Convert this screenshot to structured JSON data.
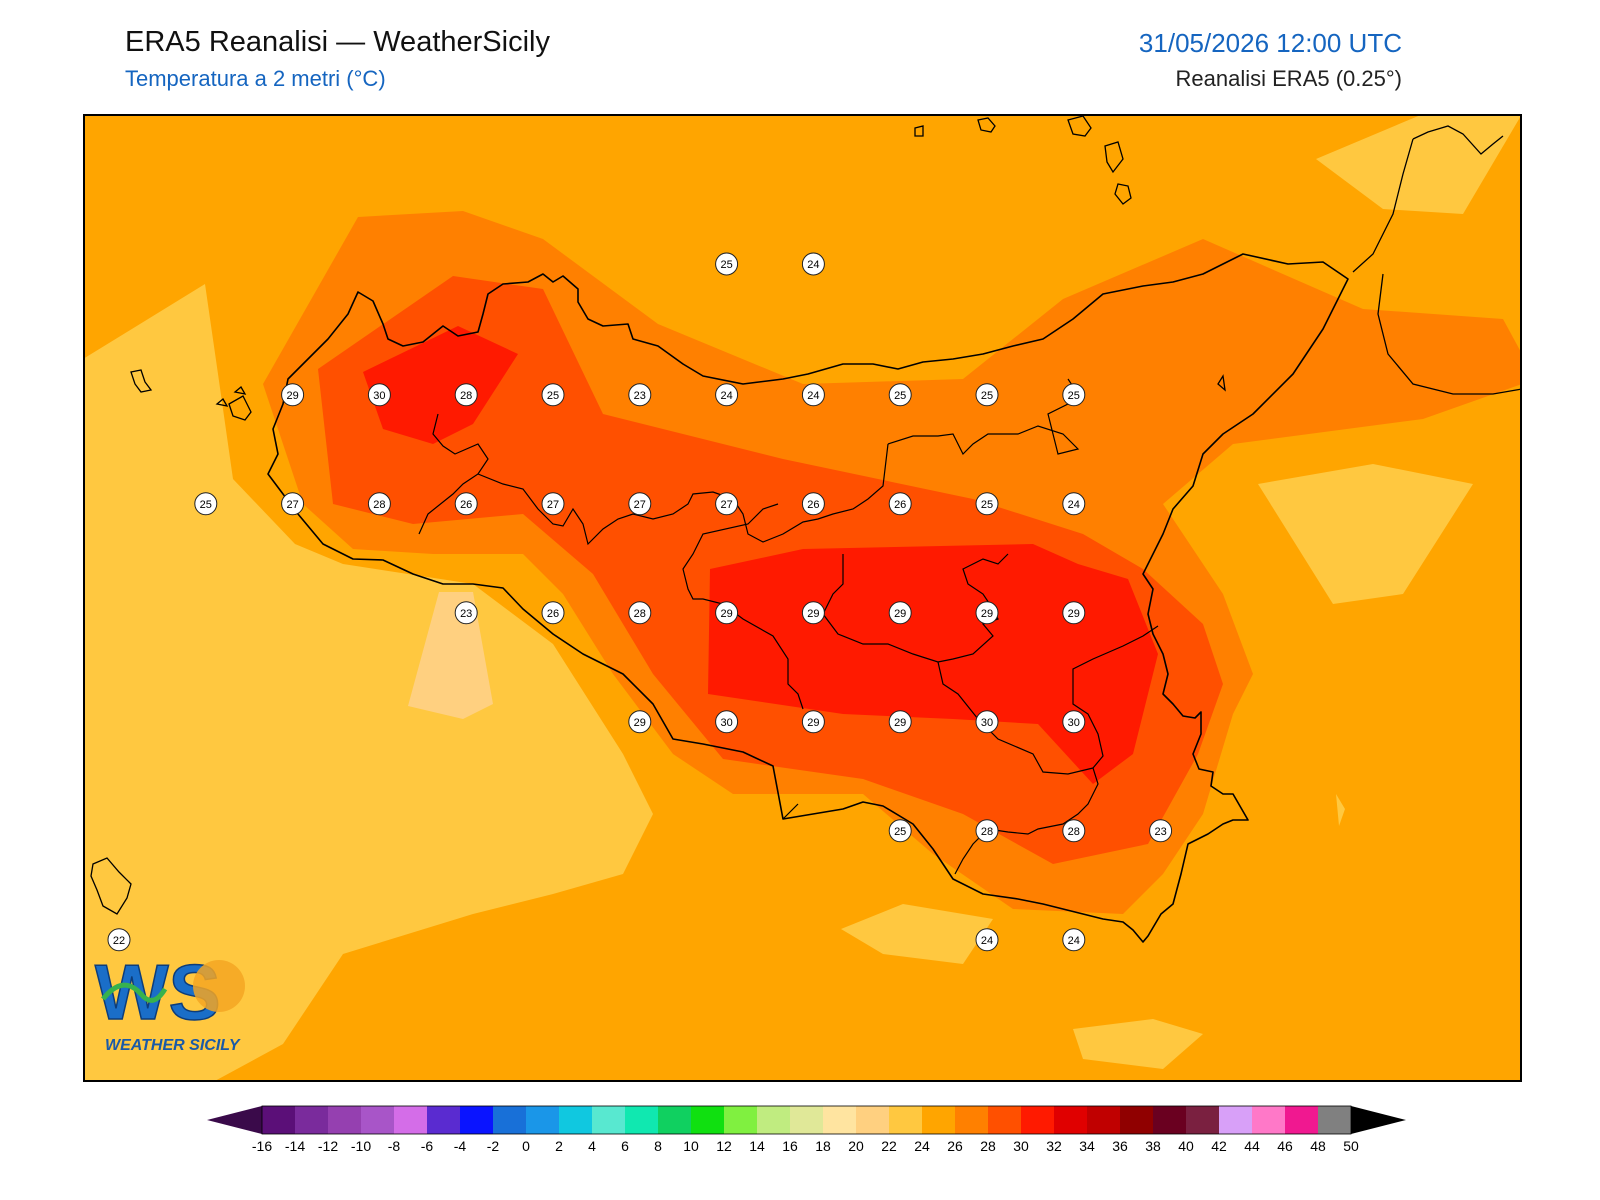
{
  "header": {
    "title": "ERA5 Reanalisi — WeatherSicily",
    "subtitle": "Temperatura a 2 metri (°C)",
    "datetime": "31/05/2026 12:00 UTC",
    "source": "Reanalisi ERA5 (0.25°)"
  },
  "logo": {
    "text": "WS",
    "caption": "WEATHER SICILY"
  },
  "map": {
    "background_color": "#ffa500",
    "temperature_labels": [
      {
        "value": "25",
        "lon": 15.0,
        "lat": 38.6
      },
      {
        "value": "24",
        "lon": 15.5,
        "lat": 38.6
      },
      {
        "value": "29",
        "lon": 12.5,
        "lat": 38.0
      },
      {
        "value": "30",
        "lon": 13.0,
        "lat": 38.0
      },
      {
        "value": "28",
        "lon": 13.5,
        "lat": 38.0
      },
      {
        "value": "25",
        "lon": 14.0,
        "lat": 38.0
      },
      {
        "value": "23",
        "lon": 14.5,
        "lat": 38.0
      },
      {
        "value": "24",
        "lon": 15.0,
        "lat": 38.0
      },
      {
        "value": "24",
        "lon": 15.5,
        "lat": 38.0
      },
      {
        "value": "25",
        "lon": 16.0,
        "lat": 38.0
      },
      {
        "value": "25",
        "lon": 16.5,
        "lat": 38.0
      },
      {
        "value": "25",
        "lon": 17.0,
        "lat": 38.0
      },
      {
        "value": "25",
        "lon": 12.0,
        "lat": 37.5
      },
      {
        "value": "27",
        "lon": 12.5,
        "lat": 37.5
      },
      {
        "value": "28",
        "lon": 13.0,
        "lat": 37.5
      },
      {
        "value": "26",
        "lon": 13.5,
        "lat": 37.5
      },
      {
        "value": "27",
        "lon": 14.0,
        "lat": 37.5
      },
      {
        "value": "27",
        "lon": 14.5,
        "lat": 37.5
      },
      {
        "value": "27",
        "lon": 15.0,
        "lat": 37.5
      },
      {
        "value": "26",
        "lon": 15.5,
        "lat": 37.5
      },
      {
        "value": "26",
        "lon": 16.0,
        "lat": 37.5
      },
      {
        "value": "25",
        "lon": 16.5,
        "lat": 37.5
      },
      {
        "value": "24",
        "lon": 17.0,
        "lat": 37.5
      },
      {
        "value": "23",
        "lon": 13.5,
        "lat": 37.0
      },
      {
        "value": "26",
        "lon": 14.0,
        "lat": 37.0
      },
      {
        "value": "28",
        "lon": 14.5,
        "lat": 37.0
      },
      {
        "value": "29",
        "lon": 15.0,
        "lat": 37.0
      },
      {
        "value": "29",
        "lon": 15.5,
        "lat": 37.0
      },
      {
        "value": "29",
        "lon": 16.0,
        "lat": 37.0
      },
      {
        "value": "29",
        "lon": 16.5,
        "lat": 37.0
      },
      {
        "value": "29",
        "lon": 17.0,
        "lat": 37.0
      },
      {
        "value": "29",
        "lon": 14.5,
        "lat": 36.5
      },
      {
        "value": "30",
        "lon": 15.0,
        "lat": 36.5
      },
      {
        "value": "29",
        "lon": 15.5,
        "lat": 36.5
      },
      {
        "value": "29",
        "lon": 16.0,
        "lat": 36.5
      },
      {
        "value": "30",
        "lon": 16.5,
        "lat": 36.5
      },
      {
        "value": "30",
        "lon": 17.0,
        "lat": 36.5
      },
      {
        "value": "25",
        "lon": 16.0,
        "lat": 36.0
      },
      {
        "value": "28",
        "lon": 16.5,
        "lat": 36.0
      },
      {
        "value": "28",
        "lon": 17.0,
        "lat": 36.0
      },
      {
        "value": "23",
        "lon": 17.5,
        "lat": 36.0
      },
      {
        "value": "22",
        "lon": 11.5,
        "lat": 35.5
      },
      {
        "value": "24",
        "lon": 16.5,
        "lat": 35.5
      },
      {
        "value": "24",
        "lon": 17.0,
        "lat": 35.5
      }
    ]
  },
  "colorbar": {
    "ticks": [
      "-16",
      "-14",
      "-12",
      "-10",
      "-8",
      "-6",
      "-4",
      "-2",
      "0",
      "2",
      "4",
      "6",
      "8",
      "10",
      "12",
      "14",
      "16",
      "18",
      "20",
      "22",
      "24",
      "26",
      "28",
      "30",
      "32",
      "34",
      "36",
      "38",
      "40",
      "42",
      "44",
      "46",
      "48",
      "50"
    ],
    "colors": [
      "#3a0a4a",
      "#5b0f78",
      "#7a2b9c",
      "#9540b0",
      "#a855c8",
      "#d46de8",
      "#5a2bd0",
      "#0a14ff",
      "#1870d8",
      "#1a96e8",
      "#10c8e0",
      "#58e8d0",
      "#10e8b0",
      "#10d060",
      "#10e010",
      "#80f040",
      "#c0ec80",
      "#e0e898",
      "#ffe4a0",
      "#ffd080",
      "#ffc840",
      "#ffa500",
      "#ff8000",
      "#ff5000",
      "#ff1a00",
      "#e00000",
      "#c00000",
      "#900000",
      "#6a0020",
      "#7a2040",
      "#d8a0f8",
      "#ff78c8",
      "#f01890",
      "#808080",
      "#3a3a3a"
    ]
  }
}
